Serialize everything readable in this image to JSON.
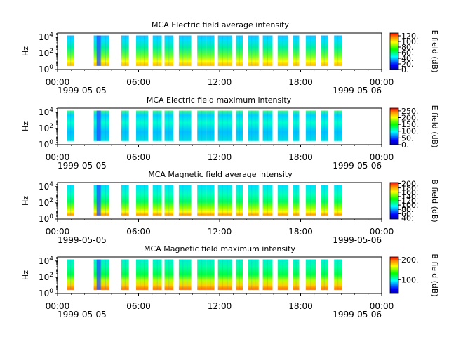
{
  "chart_data": [
    {
      "type": "heatmap",
      "title": "MCA  Electric field average intensity",
      "ylabel": "Hz",
      "yticks": [
        {
          "base": "10",
          "exp": "0"
        },
        {
          "base": "10",
          "exp": "2"
        },
        {
          "base": "10",
          "exp": "4"
        }
      ],
      "ylim_log10": [
        0,
        4.5
      ],
      "xticks": [
        "00:00",
        "06:00",
        "12:00",
        "18:00",
        "00:00"
      ],
      "xtick_hours": [
        0,
        6,
        12,
        18,
        24
      ],
      "date_start": "1999-05-05",
      "date_end": "1999-05-06",
      "colorbar": {
        "label": "E field (dB)",
        "ticks": [
          "0.",
          "20.",
          "40.",
          "60.",
          "80.",
          "100.",
          "120."
        ],
        "range": [
          0,
          130
        ]
      },
      "data_blocks_hours": [
        [
          0.72,
          1.22
        ],
        [
          2.68,
          3.85
        ],
        [
          4.72,
          5.28
        ],
        [
          5.82,
          6.72
        ],
        [
          7.05,
          7.72
        ],
        [
          7.92,
          8.58
        ],
        [
          8.98,
          9.9
        ],
        [
          10.35,
          11.02
        ],
        [
          11.02,
          11.62
        ],
        [
          11.88,
          12.92
        ],
        [
          13.22,
          13.72
        ],
        [
          14.12,
          14.9
        ],
        [
          15.2,
          15.92
        ],
        [
          16.3,
          17.07
        ],
        [
          17.43,
          17.9
        ],
        [
          18.38,
          19.12
        ],
        [
          19.48,
          20.02
        ],
        [
          20.48,
          21.05
        ]
      ]
    },
    {
      "type": "heatmap",
      "title": "MCA  Electric field maximum intensity",
      "ylabel": "Hz",
      "yticks": [
        {
          "base": "10",
          "exp": "0"
        },
        {
          "base": "10",
          "exp": "2"
        },
        {
          "base": "10",
          "exp": "4"
        }
      ],
      "ylim_log10": [
        0,
        4.5
      ],
      "xticks": [
        "00:00",
        "06:00",
        "12:00",
        "18:00",
        "00:00"
      ],
      "xtick_hours": [
        0,
        6,
        12,
        18,
        24
      ],
      "date_start": "1999-05-05",
      "date_end": "1999-05-06",
      "colorbar": {
        "label": "E field (dB)",
        "ticks": [
          "0.",
          "50.",
          "100.",
          "150.",
          "200.",
          "250."
        ],
        "range": [
          0,
          270
        ]
      },
      "data_blocks_hours": [
        [
          0.72,
          1.22
        ],
        [
          2.68,
          3.85
        ],
        [
          4.72,
          5.28
        ],
        [
          5.82,
          6.72
        ],
        [
          7.05,
          7.72
        ],
        [
          7.92,
          8.58
        ],
        [
          8.98,
          9.9
        ],
        [
          10.35,
          11.02
        ],
        [
          11.02,
          11.62
        ],
        [
          11.88,
          12.92
        ],
        [
          13.22,
          13.72
        ],
        [
          14.12,
          14.9
        ],
        [
          15.2,
          15.92
        ],
        [
          16.3,
          17.07
        ],
        [
          17.43,
          17.9
        ],
        [
          18.38,
          19.12
        ],
        [
          19.48,
          20.02
        ],
        [
          20.48,
          21.05
        ]
      ]
    },
    {
      "type": "heatmap",
      "title": "MCA  Magnetic field average intensity",
      "ylabel": "Hz",
      "yticks": [
        {
          "base": "10",
          "exp": "0"
        },
        {
          "base": "10",
          "exp": "2"
        },
        {
          "base": "10",
          "exp": "4"
        }
      ],
      "ylim_log10": [
        0,
        4.5
      ],
      "xticks": [
        "00:00",
        "06:00",
        "12:00",
        "18:00",
        "00:00"
      ],
      "xtick_hours": [
        0,
        6,
        12,
        18,
        24
      ],
      "date_start": "1999-05-05",
      "date_end": "1999-05-06",
      "colorbar": {
        "label": "B field (dB)",
        "ticks": [
          "40.",
          "60.",
          "80.",
          "100.",
          "120.",
          "140.",
          "160.",
          "180.",
          "200."
        ],
        "range": [
          35,
          205
        ]
      },
      "data_blocks_hours": [
        [
          0.72,
          1.22
        ],
        [
          2.68,
          3.85
        ],
        [
          4.72,
          5.28
        ],
        [
          5.82,
          6.72
        ],
        [
          7.05,
          7.72
        ],
        [
          7.92,
          8.58
        ],
        [
          8.98,
          9.9
        ],
        [
          10.35,
          11.02
        ],
        [
          11.02,
          11.62
        ],
        [
          11.88,
          12.92
        ],
        [
          13.22,
          13.72
        ],
        [
          14.12,
          14.9
        ],
        [
          15.2,
          15.92
        ],
        [
          16.3,
          17.07
        ],
        [
          17.43,
          17.9
        ],
        [
          18.38,
          19.12
        ],
        [
          19.48,
          20.02
        ],
        [
          20.48,
          21.05
        ]
      ]
    },
    {
      "type": "heatmap",
      "title": "MCA  Magnetic field maximum intensity",
      "ylabel": "Hz",
      "yticks": [
        {
          "base": "10",
          "exp": "0"
        },
        {
          "base": "10",
          "exp": "2"
        },
        {
          "base": "10",
          "exp": "4"
        }
      ],
      "ylim_log10": [
        0,
        4.5
      ],
      "xticks": [
        "00:00",
        "06:00",
        "12:00",
        "18:00",
        "00:00"
      ],
      "xtick_hours": [
        0,
        6,
        12,
        18,
        24
      ],
      "date_start": "1999-05-05",
      "date_end": "1999-05-06",
      "colorbar": {
        "label": "B field (dB)",
        "ticks": [
          "100.",
          "200."
        ],
        "range": [
          30,
          215
        ]
      },
      "data_blocks_hours": [
        [
          0.72,
          1.22
        ],
        [
          2.68,
          3.85
        ],
        [
          4.72,
          5.28
        ],
        [
          5.82,
          6.72
        ],
        [
          7.05,
          7.72
        ],
        [
          7.92,
          8.58
        ],
        [
          8.98,
          9.9
        ],
        [
          10.35,
          11.02
        ],
        [
          11.02,
          11.62
        ],
        [
          11.88,
          12.92
        ],
        [
          13.22,
          13.72
        ],
        [
          14.12,
          14.9
        ],
        [
          15.2,
          15.92
        ],
        [
          16.3,
          17.07
        ],
        [
          17.43,
          17.9
        ],
        [
          18.38,
          19.12
        ],
        [
          19.48,
          20.02
        ],
        [
          20.48,
          21.05
        ]
      ]
    }
  ]
}
